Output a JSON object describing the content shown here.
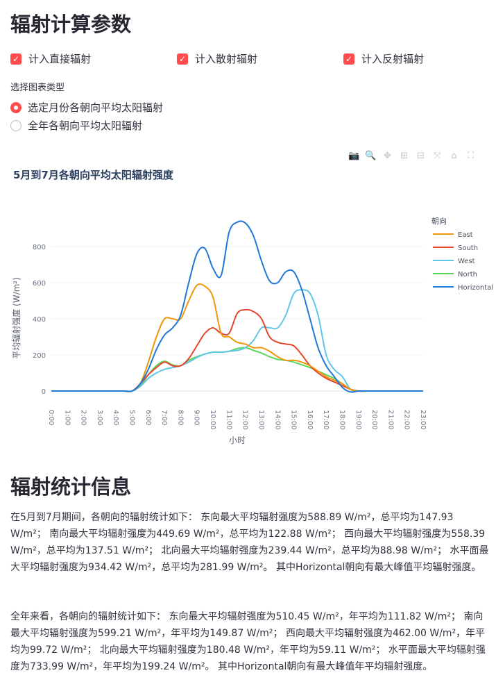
{
  "header": {
    "title": "辐射计算参数"
  },
  "options": {
    "direct": "计入直接辐射",
    "diffuse": "计入散射辐射",
    "reflect": "计入反射辐射"
  },
  "chart_select": {
    "label": "选择图表类型",
    "option1": "选定月份各朝向平均太阳辐射",
    "option2": "全年各朝向平均太阳辐射"
  },
  "icons": [
    "camera-icon",
    "zoom-icon",
    "pan-icon",
    "zoom-in-icon",
    "zoom-out-icon",
    "autoscale-icon",
    "home-icon",
    "fullscreen-icon"
  ],
  "chart_data": {
    "type": "line",
    "title": "5月到7月各朝向平均太阳辐射强度",
    "xlabel": "小时",
    "ylabel": "平均辐射强度 (W/m²)",
    "legend_title": "朝向",
    "legend_position": "right",
    "ylim": [
      -20,
      1000
    ],
    "yticks": [
      0,
      200,
      400,
      600,
      800
    ],
    "categories": [
      "0:00",
      "1:00",
      "2:00",
      "3:00",
      "4:00",
      "5:00",
      "6:00",
      "7:00",
      "8:00",
      "9:00",
      "10:00",
      "11:00",
      "12:00",
      "13:00",
      "14:00",
      "15:00",
      "16:00",
      "17:00",
      "18:00",
      "19:00",
      "20:00",
      "21:00",
      "22:00",
      "23:00"
    ],
    "x": [
      0,
      0.5,
      1,
      1.5,
      2,
      2.5,
      3,
      3.5,
      4,
      4.5,
      5,
      5.5,
      6,
      6.5,
      7,
      7.5,
      8,
      8.5,
      9,
      9.5,
      10,
      10.5,
      11,
      11.5,
      12,
      12.5,
      13,
      13.5,
      14,
      14.5,
      15,
      15.5,
      16,
      16.5,
      17,
      17.5,
      18,
      18.5,
      19,
      19.5,
      20,
      20.5,
      21,
      21.5,
      22,
      22.5,
      23
    ],
    "series": [
      {
        "name": "East",
        "color": "#f0960a",
        "values": [
          0,
          0,
          0,
          0,
          0,
          0,
          0,
          0,
          0,
          0,
          0,
          40,
          160,
          300,
          400,
          400,
          400,
          500,
          585,
          580,
          520,
          320,
          300,
          270,
          260,
          240,
          240,
          220,
          190,
          170,
          170,
          160,
          140,
          110,
          80,
          60,
          40,
          10,
          0,
          0,
          0,
          0,
          0,
          0,
          0,
          0,
          0
        ]
      },
      {
        "name": "South",
        "color": "#e8452c",
        "values": [
          0,
          0,
          0,
          0,
          0,
          0,
          0,
          0,
          0,
          0,
          0,
          40,
          90,
          130,
          160,
          140,
          140,
          180,
          250,
          320,
          350,
          320,
          320,
          430,
          450,
          440,
          400,
          300,
          270,
          260,
          250,
          200,
          140,
          100,
          70,
          50,
          30,
          10,
          0,
          0,
          0,
          0,
          0,
          0,
          0,
          0,
          0
        ]
      },
      {
        "name": "West",
        "color": "#5fc6e8",
        "values": [
          0,
          0,
          0,
          0,
          0,
          0,
          0,
          0,
          0,
          0,
          0,
          25,
          70,
          100,
          120,
          130,
          140,
          160,
          185,
          205,
          215,
          215,
          220,
          225,
          240,
          280,
          350,
          350,
          350,
          420,
          540,
          560,
          540,
          420,
          200,
          120,
          80,
          10,
          0,
          0,
          0,
          0,
          0,
          0,
          0,
          0,
          0
        ]
      },
      {
        "name": "North",
        "color": "#5cd65c",
        "values": [
          0,
          0,
          0,
          0,
          0,
          0,
          0,
          0,
          0,
          0,
          0,
          30,
          90,
          140,
          165,
          145,
          140,
          170,
          190,
          205,
          215,
          215,
          220,
          235,
          240,
          225,
          210,
          190,
          175,
          170,
          160,
          145,
          130,
          110,
          90,
          70,
          40,
          10,
          0,
          0,
          0,
          0,
          0,
          0,
          0,
          0,
          0
        ]
      },
      {
        "name": "Horizontal",
        "color": "#1f77d8",
        "values": [
          0,
          0,
          0,
          0,
          0,
          0,
          0,
          0,
          0,
          0,
          0,
          40,
          120,
          230,
          310,
          350,
          420,
          600,
          760,
          790,
          680,
          640,
          880,
          935,
          930,
          860,
          720,
          610,
          600,
          660,
          660,
          560,
          400,
          240,
          140,
          80,
          20,
          -5,
          0,
          0,
          0,
          0,
          0,
          0,
          0,
          0,
          0
        ]
      }
    ]
  },
  "stats": {
    "title": "辐射统计信息",
    "p1": "在5月到7月期间，各朝向的辐射统计如下： 东向最大平均辐射强度为588.89 W/m²，总平均为147.93 W/m²； 南向最大平均辐射强度为449.69 W/m²，总平均为122.88 W/m²； 西向最大平均辐射强度为558.39 W/m²，总平均为137.51 W/m²； 北向最大平均辐射强度为239.44 W/m²，总平均为88.98 W/m²； 水平面最大平均辐射强度为934.42 W/m²，总平均为281.99 W/m²。 其中Horizontal朝向有最大峰值平均辐射强度。",
    "p2": "全年来看，各朝向的辐射统计如下： 东向最大平均辐射强度为510.45 W/m²，年平均为111.82 W/m²； 南向最大平均辐射强度为599.21 W/m²，年平均为149.87 W/m²； 西向最大平均辐射强度为462.00 W/m²，年平均为99.72 W/m²； 北向最大平均辐射强度为180.48 W/m²，年平均为59.11 W/m²； 水平面最大平均辐射强度为733.99 W/m²，年平均为199.24 W/m²。 其中Horizontal朝向有最大峰值年平均辐射强度。"
  }
}
